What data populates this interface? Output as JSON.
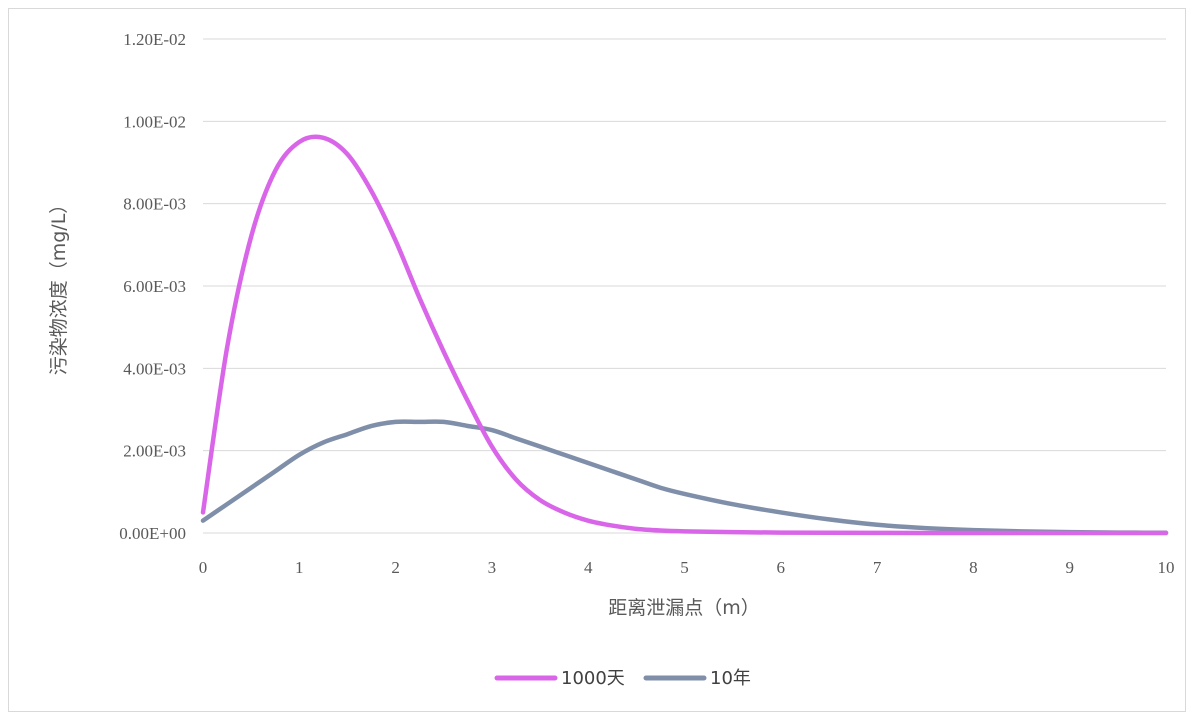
{
  "chart_data": {
    "type": "line",
    "title": "",
    "xlabel": "距离泄漏点（m）",
    "ylabel": "污染物浓度（mg/L）",
    "xlim": [
      0,
      10
    ],
    "ylim": [
      0,
      0.012
    ],
    "x_ticks": [
      "0",
      "1",
      "2",
      "3",
      "4",
      "5",
      "6",
      "7",
      "8",
      "9",
      "10"
    ],
    "y_ticks": [
      "0.00E+00",
      "2.00E-03",
      "4.00E-03",
      "6.00E-03",
      "8.00E-03",
      "1.00E-02",
      "1.20E-02"
    ],
    "grid": true,
    "legend_position": "bottom",
    "x": [
      0,
      0.25,
      0.5,
      0.75,
      1,
      1.25,
      1.5,
      1.75,
      2,
      2.25,
      2.5,
      2.75,
      3,
      3.25,
      3.5,
      3.75,
      4,
      4.25,
      4.5,
      4.75,
      5,
      5.5,
      6,
      6.5,
      7,
      7.5,
      8,
      8.5,
      9,
      9.5,
      10
    ],
    "series": [
      {
        "name": "1000天",
        "color": "#d966e8",
        "values": [
          0.0005,
          0.0045,
          0.0072,
          0.0088,
          0.0095,
          0.0096,
          0.0092,
          0.0083,
          0.0071,
          0.0057,
          0.0044,
          0.0032,
          0.0021,
          0.0013,
          0.0008,
          0.0005,
          0.0003,
          0.00018,
          0.0001,
          6e-05,
          4e-05,
          2e-05,
          1e-05,
          5e-06,
          2e-06,
          1e-06,
          0,
          0,
          0,
          0,
          0
        ]
      },
      {
        "name": "10年",
        "color": "#7f8fa9",
        "values": [
          0.0003,
          0.0007,
          0.0011,
          0.0015,
          0.0019,
          0.0022,
          0.0024,
          0.0026,
          0.0027,
          0.0027,
          0.0027,
          0.0026,
          0.0025,
          0.0023,
          0.0021,
          0.0019,
          0.0017,
          0.0015,
          0.0013,
          0.0011,
          0.00095,
          0.0007,
          0.0005,
          0.00033,
          0.0002,
          0.00012,
          7e-05,
          4e-05,
          2e-05,
          1e-05,
          5e-06
        ]
      }
    ]
  }
}
